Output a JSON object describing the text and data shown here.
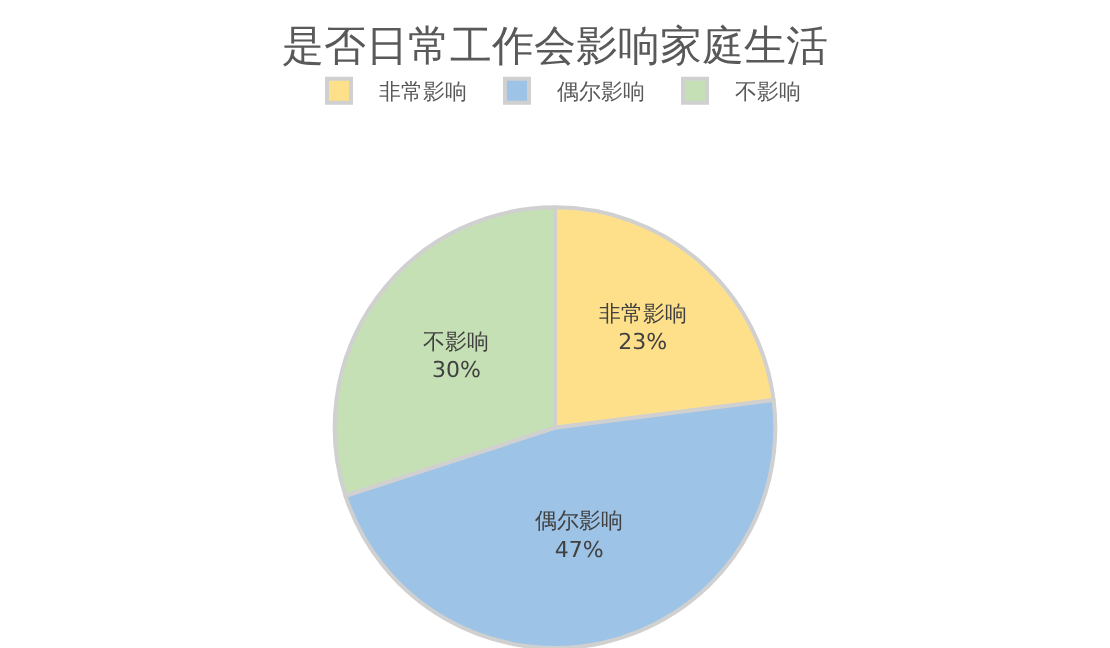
{
  "chart_data": {
    "type": "pie",
    "title": "是否日常工作会影响家庭生活",
    "categories": [
      "非常影响",
      "偶尔影响",
      "不影响"
    ],
    "values": [
      23,
      47,
      30
    ],
    "colors": [
      "#ffe08a",
      "#9dc3e6",
      "#c5e0b4"
    ],
    "value_labels": [
      "23%",
      "47%",
      "30%"
    ],
    "legend": "top"
  }
}
